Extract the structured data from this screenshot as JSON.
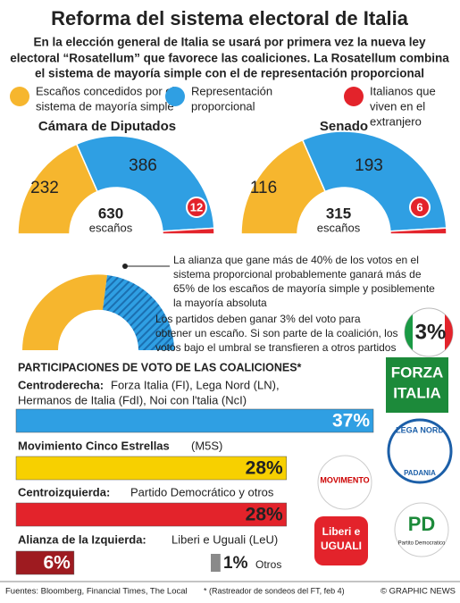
{
  "title": "Reforma del sistema electoral de Italia",
  "subtitle": [
    "En la elección general de Italia se usará por primera vez la nueva ley",
    "electoral “Rosatellum” que favorece las coaliciones. La Rosatellum combina",
    "el sistema de mayoría simple con el de representación proporcional"
  ],
  "legend": [
    {
      "lines": [
        "Escaños concedidos por el",
        "sistema de mayoría simple"
      ],
      "color": "#f6b62e"
    },
    {
      "lines": [
        "Representación",
        "proporcional"
      ],
      "color": "#2f9fe3"
    },
    {
      "lines": [
        "Italianos que",
        "viven en el",
        "extranjero"
      ],
      "color": "#e3232b"
    }
  ],
  "chart_data": [
    {
      "type": "pie",
      "title": "Cámara de Diputados",
      "values": [
        232,
        386,
        12
      ],
      "colors": [
        "#f6b62e",
        "#2f9fe3",
        "#e3232b"
      ],
      "total": 630,
      "total_label": "escaños"
    },
    {
      "type": "pie",
      "title": "Senado",
      "values": [
        116,
        193,
        6
      ],
      "colors": [
        "#f6b62e",
        "#2f9fe3",
        "#e3232b"
      ],
      "total": 315,
      "total_label": "escaños"
    },
    {
      "type": "bar",
      "title": "PARTICIPACIONES DE VOTO DE LAS COALICIONES*",
      "categories": [
        "Centroderecha:",
        "Movimiento Cinco Estrellas",
        "Centroizquierda:",
        "Alianza de la Izquierda:",
        "Otros"
      ],
      "details": [
        [
          "Forza Italia (FI), Lega Nord (LN),",
          "Hermanos de Italia  (FdI), Noi con l'talia (NcI)"
        ],
        [
          "(M5S)"
        ],
        [
          "Partido Democrático y otros"
        ],
        [
          "Liberi e Uguali (LeU)"
        ],
        null
      ],
      "values": [
        37,
        28,
        28,
        6,
        1
      ],
      "value_labels": [
        "37%",
        "28%",
        "28%",
        "6%",
        "1%"
      ],
      "colors": [
        "#2f9fe3",
        "#f7d000",
        "#e3232b",
        "#9e1b20",
        "#8a8a8a"
      ],
      "xlim": [
        0,
        37
      ]
    }
  ],
  "notes": [
    [
      "La alianza que gane más de 40% de los votos en el",
      "sistema proporcional probablemente ganará más de",
      "65% de los escaños de mayoría simple y posiblemente",
      "la mayoría absoluta"
    ],
    [
      "Los partidos deben ganar 3% del voto para",
      "obtener un escaño. Si son parte de la coalición, los",
      "votos bajo el umbral se transfieren a otros partidos"
    ]
  ],
  "threshold": "3%",
  "logos": [
    "FORZA",
    "ITALIA",
    "LEGA NORD",
    "PADANIA",
    "MOVIMENTO",
    "Liberi e",
    "UGUALI",
    "PD",
    "Partito Democratico"
  ],
  "footer": {
    "sources": "Fuentes: Bloomberg, Financial Times, The Local",
    "note": "* (Rastreador de sondeos del FT, feb 4)",
    "credit": "© GRAPHIC NEWS"
  }
}
